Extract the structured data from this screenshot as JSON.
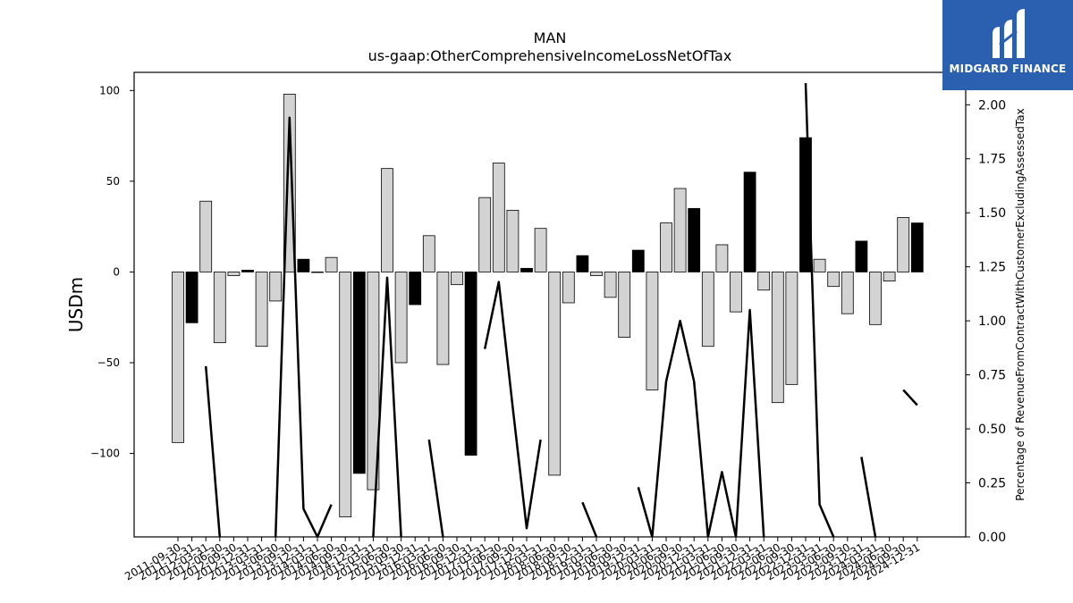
{
  "chart_data": {
    "type": "bar+line",
    "title": "MAN",
    "subtitle": "us-gaap:OtherComprehensiveIncomeLossNetOfTax",
    "ylabel": "USDm",
    "y2label": "Percentage of RevenueFromContractWithCustomerExcludingAssessedTax",
    "ylim": [
      -146,
      110
    ],
    "y2lim": [
      0,
      2.15
    ],
    "yticks": [
      100,
      50,
      0,
      -50,
      -100
    ],
    "ytick_labels": [
      "100",
      "50",
      "0",
      "−50",
      "−100"
    ],
    "y2ticks": [
      2.0,
      1.75,
      1.5,
      1.25,
      1.0,
      0.75,
      0.5,
      0.25,
      0.0
    ],
    "y2tick_labels": [
      "2.00",
      "1.75",
      "1.50",
      "1.25",
      "1.00",
      "0.75",
      "0.50",
      "0.25",
      "0.00"
    ],
    "categories": [
      "2011-09-30",
      "2011-12-31",
      "2012-03-31",
      "2012-06-30",
      "2012-09-30",
      "2012-12-31",
      "2013-03-31",
      "2013-06-30",
      "2013-09-30",
      "2013-12-31",
      "2014-03-31",
      "2014-06-30",
      "2014-09-30",
      "2014-12-31",
      "2015-03-31",
      "2015-06-30",
      "2015-09-30",
      "2015-12-31",
      "2016-03-31",
      "2016-06-30",
      "2016-09-30",
      "2016-12-31",
      "2017-03-31",
      "2017-06-30",
      "2017-09-30",
      "2017-12-31",
      "2018-03-31",
      "2018-06-30",
      "2018-09-30",
      "2018-12-31",
      "2019-03-31",
      "2019-06-30",
      "2019-09-30",
      "2019-12-31",
      "2020-03-31",
      "2020-06-30",
      "2020-09-30",
      "2020-12-31",
      "2021-03-31",
      "2021-06-30",
      "2021-09-30",
      "2021-12-31",
      "2022-03-31",
      "2022-06-30",
      "2022-09-30",
      "2022-12-31",
      "2023-03-31",
      "2023-06-30",
      "2023-09-30",
      "2023-12-31",
      "2024-03-31",
      "2024-06-30",
      "2024-09-30",
      "2024-12-31"
    ],
    "values": [
      -94,
      -28,
      39,
      -39,
      -2,
      1,
      -41,
      -16,
      98,
      7,
      0,
      8,
      -135,
      -111,
      -120,
      57,
      -50,
      -18,
      20,
      -51,
      -7,
      -101,
      41,
      60,
      34,
      2,
      24,
      -112,
      -17,
      9,
      -2,
      -14,
      -36,
      12,
      -65,
      27,
      46,
      35,
      -41,
      15,
      -22,
      55,
      -10,
      -72,
      -62,
      74,
      7,
      -8,
      -23,
      17,
      -29,
      -5,
      30,
      27
    ],
    "bar_fill": [
      "#d3d3d3",
      "#000000",
      "#d3d3d3",
      "#d3d3d3",
      "#d3d3d3",
      "#000000",
      "#d3d3d3",
      "#d3d3d3",
      "#d3d3d3",
      "#000000",
      "#d3d3d3",
      "#d3d3d3",
      "#d3d3d3",
      "#000000",
      "#d3d3d3",
      "#d3d3d3",
      "#d3d3d3",
      "#000000",
      "#d3d3d3",
      "#d3d3d3",
      "#d3d3d3",
      "#000000",
      "#d3d3d3",
      "#d3d3d3",
      "#d3d3d3",
      "#000000",
      "#d3d3d3",
      "#d3d3d3",
      "#d3d3d3",
      "#000000",
      "#d3d3d3",
      "#d3d3d3",
      "#d3d3d3",
      "#000000",
      "#d3d3d3",
      "#d3d3d3",
      "#d3d3d3",
      "#000000",
      "#d3d3d3",
      "#d3d3d3",
      "#d3d3d3",
      "#000000",
      "#d3d3d3",
      "#d3d3d3",
      "#d3d3d3",
      "#000000",
      "#d3d3d3",
      "#d3d3d3",
      "#d3d3d3",
      "#000000",
      "#d3d3d3",
      "#d3d3d3",
      "#d3d3d3",
      "#000000"
    ],
    "line_series": {
      "values": [
        null,
        null,
        0.79,
        0,
        null,
        0.01,
        null,
        0,
        1.94,
        0.13,
        0,
        0.15,
        null,
        null,
        0,
        1.2,
        0,
        null,
        0.45,
        0,
        null,
        null,
        0.87,
        1.18,
        0.6,
        0.04,
        0.45,
        null,
        null,
        0.16,
        0,
        null,
        null,
        0.23,
        0,
        0.72,
        1.0,
        0.72,
        0,
        0.3,
        0,
        1.05,
        0,
        null,
        null,
        2.1,
        0.15,
        0,
        null,
        0.37,
        0,
        null,
        0.68,
        0.61
      ],
      "color": "#000000"
    },
    "grid": false,
    "legend": "none"
  },
  "logo": {
    "text": "MIDGARD FINANCE",
    "color": "#2b5fb0"
  }
}
